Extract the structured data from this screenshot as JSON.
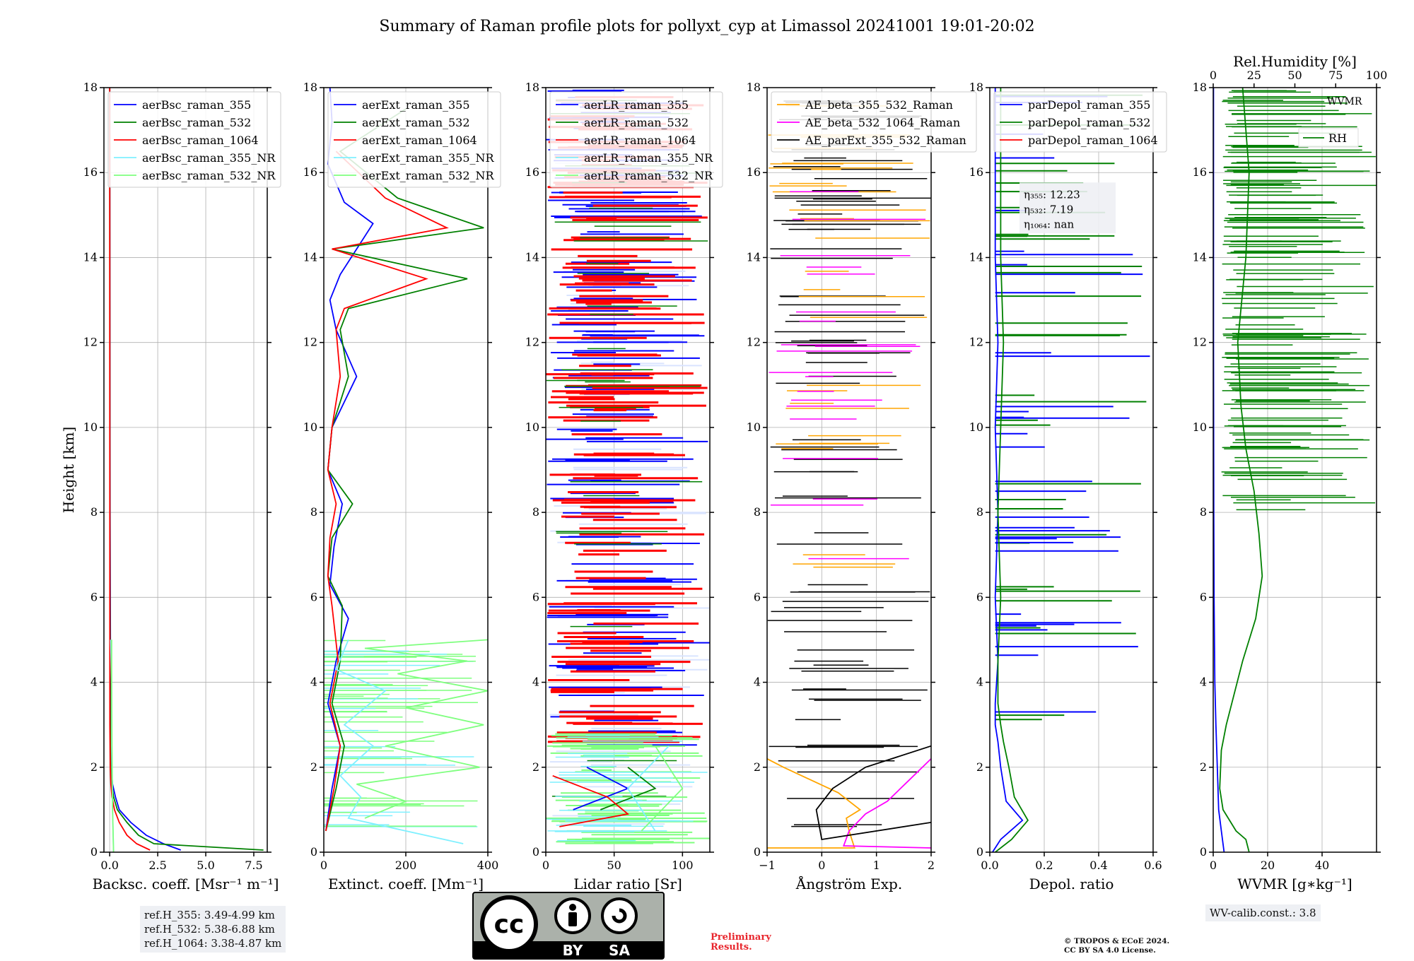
{
  "title": "Summary of Raman profile plots for pollyxt_cyp at Limassol 20241001 19:01-20:02",
  "colors": {
    "blue": "#0000ff",
    "green": "#008000",
    "red": "#ff0000",
    "cyan": "#7ff0ff",
    "lightgreen": "#7fff7f",
    "orange": "#ffa500",
    "magenta": "#ff00ff",
    "black": "#000000"
  },
  "chart_data": [
    {
      "type": "line",
      "id": "bsc",
      "xlabel": "Backsc. coeff. [Msr⁻¹ m⁻¹]",
      "ylabel": "Height [km]",
      "xlim": [
        -0.3,
        8.2
      ],
      "ylim": [
        0,
        18
      ],
      "xticks": [
        "0.0",
        "2.5",
        "5.0",
        "7.5"
      ],
      "yticks": [
        "0",
        "2",
        "4",
        "6",
        "8",
        "10",
        "12",
        "14",
        "16",
        "18"
      ],
      "legend": [
        "aerBsc_raman_355",
        "aerBsc_raman_532",
        "aerBsc_raman_1064",
        "aerBsc_raman_355_NR",
        "aerBsc_raman_532_NR"
      ],
      "series": [
        {
          "name": "aerBsc_raman_355",
          "color": "blue",
          "x": [
            3.7,
            2.8,
            1.9,
            1.1,
            0.5,
            0.3,
            0.15,
            0.08,
            0.05,
            0.02,
            0.0
          ],
          "y": [
            0.05,
            0.2,
            0.4,
            0.7,
            1.0,
            1.3,
            1.6,
            2.0,
            3.0,
            8.0,
            18.0
          ]
        },
        {
          "name": "aerBsc_raman_532",
          "color": "green",
          "x": [
            8.0,
            2.3,
            1.5,
            0.9,
            0.4,
            0.2,
            0.1,
            0.05,
            0.03,
            0.01,
            0.0
          ],
          "y": [
            0.05,
            0.2,
            0.4,
            0.7,
            1.0,
            1.3,
            1.6,
            2.0,
            3.0,
            8.0,
            18.0
          ]
        },
        {
          "name": "aerBsc_raman_1064",
          "color": "red",
          "x": [
            2.1,
            1.4,
            0.9,
            0.5,
            0.25,
            0.12,
            0.06,
            0.03,
            0.01,
            0.0
          ],
          "y": [
            0.05,
            0.2,
            0.4,
            0.7,
            1.0,
            1.3,
            1.6,
            2.0,
            3.0,
            18.0
          ]
        },
        {
          "name": "aerBsc_raman_355_NR",
          "color": "cyan",
          "x": [
            0.2,
            0.15,
            0.1,
            0.1,
            0.05
          ],
          "y": [
            0.0,
            1.0,
            2.5,
            4.0,
            5.0
          ]
        },
        {
          "name": "aerBsc_raman_532_NR",
          "color": "lightgreen",
          "x": [
            0.2,
            0.15,
            0.12,
            0.1,
            0.1
          ],
          "y": [
            0.0,
            1.0,
            2.5,
            4.0,
            5.0
          ]
        }
      ]
    },
    {
      "type": "line",
      "id": "ext",
      "xlabel": "Extinct. coeff. [Mm⁻¹]",
      "xlim": [
        0,
        400
      ],
      "ylim": [
        0,
        18
      ],
      "xticks": [
        "0",
        "200",
        "400"
      ],
      "yticks": [
        "0",
        "2",
        "4",
        "6",
        "8",
        "10",
        "12",
        "14",
        "16",
        "18"
      ],
      "legend": [
        "aerExt_raman_355",
        "aerExt_raman_532",
        "aerExt_raman_1064",
        "aerExt_raman_355_NR",
        "aerExt_raman_532_NR"
      ],
      "series": [
        {
          "name": "aerExt_raman_355",
          "color": "blue",
          "x": [
            5,
            20,
            40,
            10,
            30,
            60,
            15,
            25,
            45,
            10,
            20,
            80,
            30,
            15,
            40,
            120,
            50,
            10,
            20,
            15
          ],
          "y": [
            0.5,
            1.5,
            2.5,
            3.5,
            4.5,
            5.5,
            6.3,
            7.2,
            8.2,
            9.0,
            10.0,
            11.2,
            12.3,
            13.0,
            13.6,
            14.8,
            15.3,
            16.2,
            17.2,
            18.0
          ]
        },
        {
          "name": "aerExt_raman_532",
          "color": "green",
          "x": [
            5,
            30,
            50,
            20,
            40,
            45,
            10,
            20,
            70,
            10,
            20,
            60,
            40,
            60,
            350,
            20,
            390,
            180,
            40,
            200
          ],
          "y": [
            0.5,
            1.5,
            2.5,
            3.5,
            4.5,
            5.8,
            6.5,
            7.4,
            8.2,
            9.0,
            10.0,
            11.2,
            12.3,
            12.8,
            13.5,
            14.2,
            14.7,
            15.4,
            16.5,
            17.5
          ]
        },
        {
          "name": "aerExt_raman_1064",
          "color": "red",
          "x": [
            5,
            25,
            40,
            15,
            35,
            20,
            10,
            15,
            30,
            10,
            20,
            40,
            30,
            50,
            250,
            20,
            300,
            150,
            30
          ],
          "y": [
            0.5,
            1.5,
            2.5,
            3.5,
            4.5,
            5.8,
            6.5,
            7.4,
            8.2,
            9.0,
            10.0,
            11.2,
            12.3,
            12.8,
            13.5,
            14.2,
            14.7,
            15.4,
            16.5
          ]
        },
        {
          "name": "aerExt_raman_355_NR",
          "color": "cyan",
          "x": [
            340,
            60,
            90,
            40,
            120,
            50,
            150,
            30,
            60
          ],
          "y": [
            0.2,
            0.8,
            1.3,
            1.8,
            2.5,
            3.0,
            3.8,
            4.3,
            5.0
          ]
        },
        {
          "name": "aerExt_raman_532_NR",
          "color": "lightgreen",
          "x": [
            100,
            200,
            80,
            380,
            150,
            390,
            200,
            400,
            180,
            350,
            100,
            400
          ],
          "y": [
            0.8,
            1.2,
            1.6,
            2.0,
            2.5,
            3.0,
            3.4,
            3.8,
            4.2,
            4.5,
            4.8,
            5.0
          ]
        }
      ]
    },
    {
      "type": "line",
      "id": "lr",
      "xlabel": "Lidar ratio [Sr]",
      "xlim": [
        0,
        120
      ],
      "ylim": [
        0,
        18
      ],
      "xticks": [
        "0",
        "50",
        "100"
      ],
      "yticks": [
        "0",
        "2",
        "4",
        "6",
        "8",
        "10",
        "12",
        "14",
        "16",
        "18"
      ],
      "legend": [
        "aerLR_raman_355",
        "aerLR_raman_532",
        "aerLR_raman_1064",
        "aerLR_raman_355_NR",
        "aerLR_raman_532_NR"
      ],
      "series": [
        {
          "name": "aerLR_raman_355",
          "color": "blue",
          "x": [
            20,
            60,
            30
          ],
          "y": [
            1.0,
            1.5,
            2.0
          ]
        },
        {
          "name": "aerLR_raman_532",
          "color": "green",
          "x": [
            40,
            80,
            60
          ],
          "y": [
            1.0,
            1.5,
            2.0
          ]
        },
        {
          "name": "aerLR_raman_1064",
          "color": "red",
          "x": [
            10,
            60,
            45,
            5
          ],
          "y": [
            0.6,
            0.9,
            1.3,
            1.8
          ]
        },
        {
          "name": "aerLR_raman_355_NR",
          "color": "cyan",
          "x": [
            80,
            60,
            90
          ],
          "y": [
            0.5,
            1.5,
            2.5
          ]
        },
        {
          "name": "aerLR_raman_532_NR",
          "color": "lightgreen",
          "x": [
            70,
            100,
            80
          ],
          "y": [
            0.5,
            1.5,
            2.5
          ]
        }
      ]
    },
    {
      "type": "line",
      "id": "ae",
      "xlabel": "Ångström Exp.",
      "xlim": [
        -1,
        2
      ],
      "ylim": [
        0,
        18
      ],
      "xticks": [
        "−1",
        "0",
        "1",
        "2"
      ],
      "yticks": [
        "0",
        "2",
        "4",
        "6",
        "8",
        "10",
        "12",
        "14",
        "16",
        "18"
      ],
      "legend": [
        "AE_beta_355_532_Raman",
        "AE_beta_532_1064_Raman",
        "AE_parExt_355_532_Raman"
      ],
      "series": [
        {
          "name": "AE_beta_355_532_Raman",
          "color": "orange",
          "x": [
            -1.0,
            0.6,
            0.5,
            0.45,
            0.7,
            0.3,
            -0.2,
            -0.7,
            -1.0
          ],
          "y": [
            0.1,
            0.1,
            0.5,
            0.8,
            1.0,
            1.4,
            1.7,
            2.0,
            2.2
          ]
        },
        {
          "name": "AE_beta_532_1064_Raman",
          "color": "magenta",
          "x": [
            2.0,
            0.4,
            0.5,
            0.8,
            1.2,
            1.6,
            2.0
          ],
          "y": [
            0.1,
            0.15,
            0.5,
            0.9,
            1.2,
            1.7,
            2.2
          ]
        },
        {
          "name": "AE_parExt_355_532_Raman",
          "color": "black",
          "x": [
            2.0,
            0.0,
            -0.1,
            0.2,
            0.8,
            2.0
          ],
          "y": [
            0.7,
            0.3,
            1.0,
            1.5,
            2.0,
            2.5
          ]
        }
      ]
    },
    {
      "type": "line",
      "id": "depol",
      "xlabel": "Depol. ratio",
      "xlim": [
        0,
        0.6
      ],
      "ylim": [
        0,
        18
      ],
      "xticks": [
        "0.0",
        "0.2",
        "0.4",
        "0.6"
      ],
      "yticks": [
        "0",
        "2",
        "4",
        "6",
        "8",
        "10",
        "12",
        "14",
        "16",
        "18"
      ],
      "legend": [
        "parDepol_raman_355",
        "parDepol_raman_532",
        "parDepol_raman_1064"
      ],
      "annotation": [
        "η₃₅₅: 12.23",
        "η₅₃₂: 7.19",
        "η₁₀₆₄: nan"
      ],
      "series": [
        {
          "name": "parDepol_raman_355",
          "color": "blue",
          "x": [
            0.01,
            0.04,
            0.12,
            0.06,
            0.04,
            0.03,
            0.02,
            0.02,
            0.03,
            0.02,
            0.03,
            0.02,
            0.03,
            0.02,
            0.02
          ],
          "y": [
            0.0,
            0.3,
            0.75,
            1.2,
            2.0,
            2.6,
            3.0,
            3.5,
            4.5,
            6.0,
            8.0,
            10.0,
            12.0,
            14.0,
            18.0
          ]
        },
        {
          "name": "parDepol_raman_532",
          "color": "green",
          "x": [
            0.02,
            0.08,
            0.14,
            0.09,
            0.07,
            0.05,
            0.04,
            0.03,
            0.03,
            0.04,
            0.03,
            0.04,
            0.05,
            0.04,
            0.04
          ],
          "y": [
            0.0,
            0.3,
            0.75,
            1.3,
            2.0,
            2.6,
            3.0,
            3.5,
            4.5,
            6.0,
            8.0,
            10.0,
            12.0,
            14.0,
            18.0
          ]
        },
        {
          "name": "parDepol_raman_1064",
          "color": "red",
          "x": [],
          "y": []
        }
      ]
    },
    {
      "type": "line",
      "id": "wv",
      "xlabel": "WVMR [g∗kg⁻¹]",
      "x2label": "Rel.Humidity [%]",
      "xlim": [
        0,
        60
      ],
      "x2lim": [
        0,
        100
      ],
      "ylim": [
        0,
        18
      ],
      "xticks": [
        "0",
        "20",
        "40"
      ],
      "x2ticks": [
        "0",
        "25",
        "50",
        "75",
        "100"
      ],
      "yticks": [
        "0",
        "2",
        "4",
        "6",
        "8",
        "10",
        "12",
        "14",
        "16",
        "18"
      ],
      "legend": [
        "WVMR",
        "RH"
      ],
      "series": [
        {
          "name": "WVMR",
          "color": "blue",
          "x": [
            4,
            3,
            2,
            1.5,
            1.0,
            0.6,
            0.3,
            0.2,
            0.1,
            0.1
          ],
          "y": [
            0.0,
            0.5,
            1.0,
            2.0,
            3.0,
            4.0,
            6.0,
            8.0,
            12.0,
            18.0
          ]
        },
        {
          "name": "RH",
          "color": "green",
          "x": [
            22,
            20,
            14,
            6,
            4,
            5,
            8,
            18,
            26,
            30,
            28,
            25,
            20,
            17,
            15,
            20,
            22,
            18
          ],
          "y": [
            0.0,
            0.3,
            0.5,
            1.0,
            1.5,
            2.4,
            3.0,
            4.5,
            5.5,
            6.5,
            7.5,
            8.5,
            9.5,
            10.5,
            12.0,
            14.0,
            16.0,
            18.0
          ]
        }
      ]
    }
  ],
  "footer": {
    "ref_heights": [
      "ref.H_355: 3.49-4.99 km",
      "ref.H_532: 5.38-6.88 km",
      "ref.H_1064: 3.38-4.87 km"
    ],
    "wv_calib": "WV-calib.const.: 3.8",
    "preliminary": [
      "Preliminary",
      "Results."
    ],
    "copyright": [
      "© TROPOS & ECoE 2024.",
      "CC BY SA 4.0 License."
    ],
    "license_badge": {
      "by": "BY",
      "sa": "SA",
      "cc": "cc"
    }
  }
}
